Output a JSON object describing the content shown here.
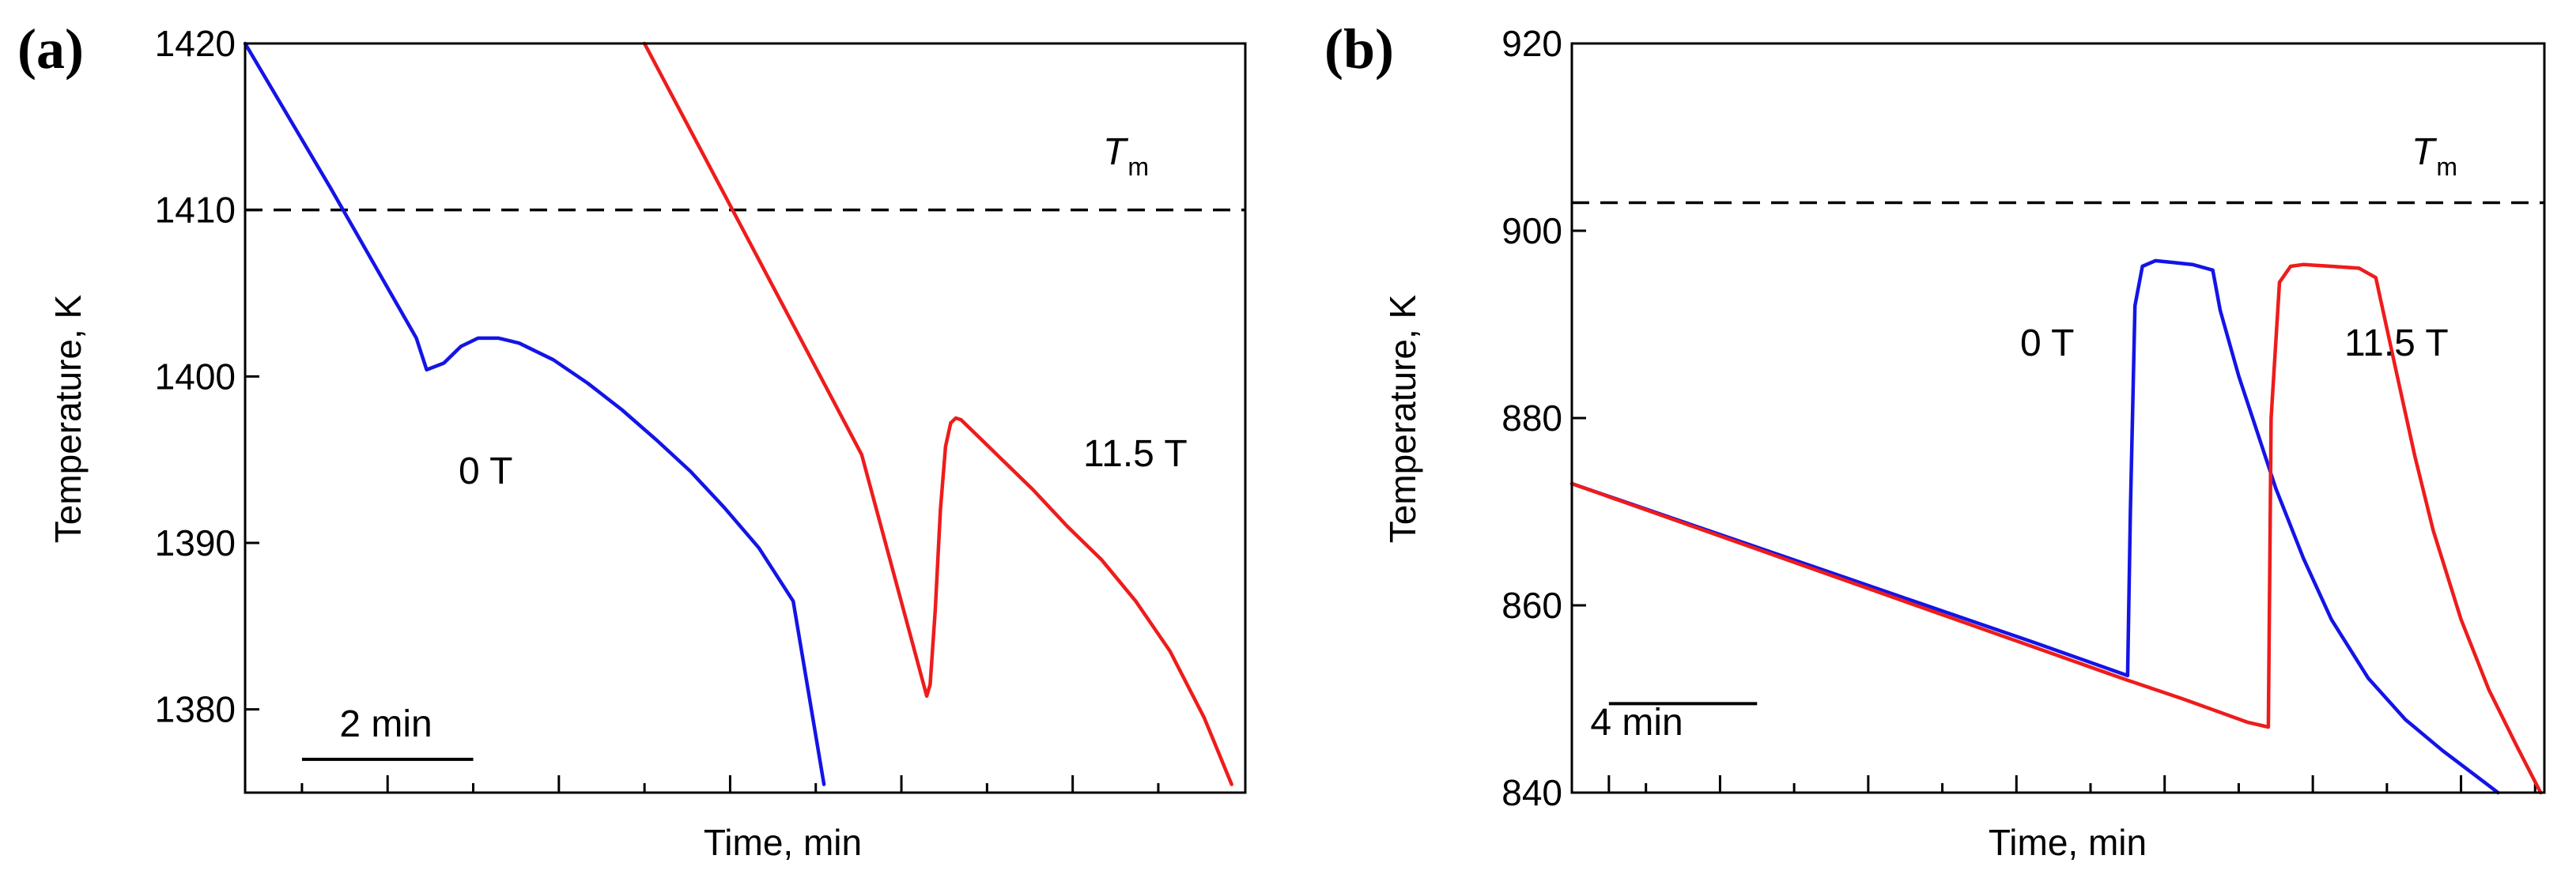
{
  "colors": {
    "zero_field": "#1414e6",
    "high_field": "#ee1c1c",
    "axis": "#000000"
  },
  "chart_data": [
    {
      "panel": "(a)",
      "type": "line",
      "xlabel": "Time, min",
      "ylabel": "Temperature, K",
      "ylim": [
        1375,
        1420
      ],
      "xlim": [
        0,
        29.2
      ],
      "yticks": [
        1380,
        1390,
        1400,
        1410,
        1420
      ],
      "ytick_labels": [
        "1380",
        "1390",
        "1400",
        "1410",
        "1420"
      ],
      "xticks_minor": [
        1.66,
        6.66,
        11.66,
        16.66,
        21.66,
        26.66
      ],
      "xticks_major": [
        4.16,
        9.16,
        14.16,
        19.16,
        24.16
      ],
      "melting_line": {
        "label_main": "T",
        "label_sub": "m",
        "value": 1410
      },
      "scale_bar": {
        "label": "2 min",
        "x_start": 1.66,
        "x_end": 6.66,
        "y": 1377
      },
      "annotations": [
        {
          "text": "0 T",
          "x": 6.5,
          "y": 1394.5
        },
        {
          "text": "11.5 T",
          "x": 24.5,
          "y": 1395.5
        }
      ],
      "series": [
        {
          "name": "0 T",
          "color": "#1414e6",
          "x": [
            0,
            2.5,
            5.0,
            5.3,
            5.8,
            6.3,
            6.8,
            7.4,
            8.0,
            9.0,
            10.0,
            11.0,
            12.0,
            13.0,
            14.0,
            15.0,
            16.0,
            16.9
          ],
          "y": [
            1420,
            1411.3,
            1402.3,
            1400.4,
            1400.8,
            1401.8,
            1402.3,
            1402.3,
            1402.0,
            1401.0,
            1399.6,
            1398.0,
            1396.2,
            1394.3,
            1392.1,
            1389.7,
            1386.5,
            1375.5
          ]
        },
        {
          "name": "11.5 T",
          "color": "#ee1c1c",
          "x": [
            11.66,
            14.0,
            16.0,
            18.0,
            19.9,
            20.0,
            20.15,
            20.3,
            20.45,
            20.6,
            20.75,
            20.9,
            21.2,
            21.6,
            22.2,
            23.0,
            24.0,
            25.0,
            26.0,
            27.0,
            28.0,
            28.8
          ],
          "y": [
            1420,
            1410.9,
            1403.1,
            1395.3,
            1380.8,
            1381.5,
            1386.0,
            1392.0,
            1395.8,
            1397.2,
            1397.5,
            1397.4,
            1396.8,
            1396.0,
            1394.8,
            1393.2,
            1391.0,
            1389.0,
            1386.5,
            1383.5,
            1379.5,
            1375.5
          ]
        }
      ]
    },
    {
      "panel": "(b)",
      "type": "line",
      "xlabel": "Time, min",
      "ylabel": "Temperature, K",
      "ylim": [
        840,
        920
      ],
      "xlim": [
        0,
        52.5
      ],
      "yticks": [
        840,
        860,
        880,
        900,
        920
      ],
      "ytick_labels": [
        "840",
        "860",
        "880",
        "900",
        "920"
      ],
      "xticks_minor": [
        4.0,
        12.0,
        20.0,
        28.0,
        36.0,
        44.0,
        52.0
      ],
      "xticks_major": [
        2.0,
        8.0,
        16.0,
        24.0,
        32.0,
        40.0,
        48.0
      ],
      "melting_line": {
        "label_main": "T",
        "label_sub": "m",
        "value": 903
      },
      "scale_bar": {
        "label": "4 min",
        "x_start": 2.0,
        "x_end": 10.0,
        "y": 849.5
      },
      "annotations": [
        {
          "text": "0 T",
          "x": 27.5,
          "y": 887
        },
        {
          "text": "11.5 T",
          "x": 43.5,
          "y": 887
        }
      ],
      "series": [
        {
          "name": "0 T",
          "color": "#1414e6",
          "x": [
            0,
            5,
            10,
            15,
            20,
            25,
            30.0,
            30.15,
            30.4,
            30.8,
            31.5,
            32.5,
            33.5,
            34.6,
            35.0,
            36.0,
            37.0,
            38.0,
            39.5,
            41.0,
            43.0,
            45.0,
            47.0,
            49.0,
            50.0
          ],
          "y": [
            873,
            869.6,
            866.2,
            862.8,
            859.4,
            856.0,
            852.5,
            870.0,
            892.0,
            896.2,
            896.8,
            896.6,
            896.4,
            895.8,
            891.5,
            884.5,
            878.5,
            872.5,
            865.0,
            858.5,
            852.2,
            847.8,
            844.5,
            841.5,
            840.0
          ]
        },
        {
          "name": "11.5 T",
          "color": "#ee1c1c",
          "x": [
            0,
            5,
            10,
            15,
            20,
            25,
            30.0,
            33.0,
            36.5,
            37.6,
            37.75,
            38.2,
            38.8,
            39.5,
            41.0,
            42.5,
            43.4,
            44.5,
            45.5,
            46.5,
            48.0,
            49.5,
            51.0,
            52.3
          ],
          "y": [
            873,
            869.5,
            866.0,
            862.5,
            859.0,
            855.5,
            852.0,
            850.0,
            847.5,
            847.0,
            880.0,
            894.5,
            896.2,
            896.4,
            896.2,
            896.0,
            895.0,
            885.0,
            876.0,
            868.0,
            858.5,
            851.0,
            845.0,
            840.0
          ]
        }
      ]
    }
  ]
}
